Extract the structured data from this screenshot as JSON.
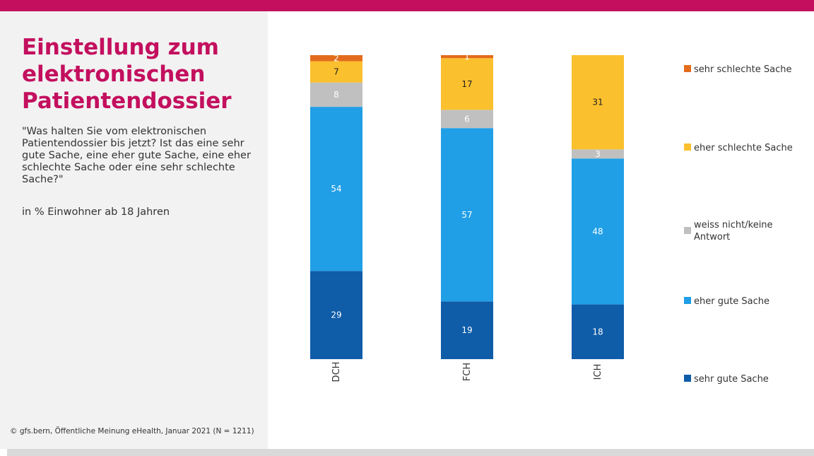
{
  "header": {
    "accent_color": "#c30f5e"
  },
  "title": "Einstellung zum elektronischen Patientendossier",
  "question": "\"Was halten Sie vom elektronischen Patientendossier bis jetzt? Ist das eine sehr gute Sache, eine eher gute Sache, eine eher schlechte Sache oder eine sehr schlechte Sache?\"",
  "unit_note": "in % Einwohner ab 18 Jahren",
  "footer": "© gfs.bern, Öffentliche Meinung eHealth, Januar 2021 (N = 1211)",
  "chart_data": {
    "type": "bar",
    "stacked": true,
    "orientation": "vertical",
    "categories": [
      "DCH",
      "FCH",
      "ICH"
    ],
    "series": [
      {
        "name": "sehr gute Sache",
        "color": "#0f5ca8",
        "values": [
          29,
          19,
          18
        ]
      },
      {
        "name": "eher gute Sache",
        "color": "#209fe6",
        "values": [
          54,
          57,
          48
        ]
      },
      {
        "name": "weiss nicht/keine Antwort",
        "color": "#c0c0c0",
        "values": [
          8,
          6,
          3
        ]
      },
      {
        "name": "eher schlechte Sache",
        "color": "#fbc02d",
        "values": [
          7,
          17,
          31
        ]
      },
      {
        "name": "sehr schlechte Sache",
        "color": "#e36c1c",
        "values": [
          2,
          1,
          0
        ]
      }
    ],
    "ylim": [
      0,
      100
    ],
    "grid": false,
    "legend_position": "right",
    "category_label_rotation": "vertical"
  }
}
